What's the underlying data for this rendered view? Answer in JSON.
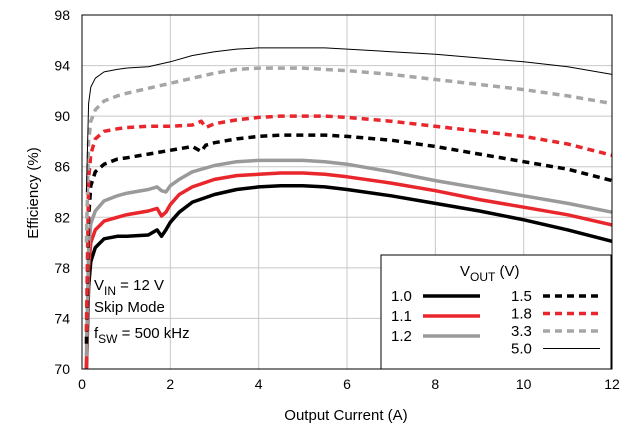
{
  "chart_data": {
    "type": "line",
    "xlabel": "Output Current (A)",
    "ylabel": "Efficiency (%)",
    "xlim": [
      0,
      12
    ],
    "ylim": [
      70,
      98
    ],
    "xticks": [
      "0",
      "2",
      "4",
      "6",
      "8",
      "10",
      "12"
    ],
    "yticks": [
      "70",
      "74",
      "78",
      "82",
      "86",
      "90",
      "94",
      "98"
    ],
    "grid": true,
    "legend": {
      "placement": "bottom-right",
      "title_main": "V",
      "title_sub": "OUT",
      "title_unit": " (V)"
    },
    "annotations": {
      "vin_main": "V",
      "vin_sub": "IN",
      "vin_value": " = 12 V",
      "mode": "Skip Mode",
      "fsw_main": "f",
      "fsw_sub": "SW",
      "fsw_value": " = 500 kHz"
    },
    "series": [
      {
        "name": "1.0",
        "color": "#000000",
        "style": "solid-thick",
        "x": [
          0.1,
          0.15,
          0.2,
          0.3,
          0.5,
          0.8,
          1.0,
          1.5,
          1.7,
          1.8,
          1.9,
          2.0,
          2.2,
          2.5,
          3.0,
          3.5,
          4.0,
          4.5,
          5.0,
          5.5,
          6.0,
          7.0,
          8.0,
          9.0,
          10.0,
          11.0,
          12.0
        ],
        "y": [
          70.0,
          76.5,
          78.5,
          79.6,
          80.3,
          80.5,
          80.5,
          80.6,
          81.0,
          80.5,
          81.0,
          81.6,
          82.4,
          83.2,
          83.8,
          84.2,
          84.4,
          84.5,
          84.5,
          84.4,
          84.2,
          83.7,
          83.1,
          82.5,
          81.8,
          81.0,
          80.1
        ]
      },
      {
        "name": "1.1",
        "color": "#e8262b",
        "style": "solid-thick",
        "x": [
          0.1,
          0.15,
          0.2,
          0.3,
          0.5,
          0.8,
          1.0,
          1.5,
          1.7,
          1.8,
          1.9,
          2.0,
          2.2,
          2.5,
          3.0,
          3.5,
          4.0,
          4.5,
          5.0,
          5.5,
          6.0,
          7.0,
          8.0,
          9.0,
          10.0,
          11.0,
          12.0
        ],
        "y": [
          70.0,
          78.0,
          80.0,
          81.0,
          81.7,
          82.0,
          82.2,
          82.5,
          82.7,
          82.1,
          82.4,
          83.0,
          83.8,
          84.4,
          85.0,
          85.3,
          85.4,
          85.5,
          85.5,
          85.4,
          85.2,
          84.7,
          84.1,
          83.4,
          82.8,
          82.2,
          81.4
        ]
      },
      {
        "name": "1.2",
        "color": "#9a9a9a",
        "style": "solid-thick",
        "x": [
          0.1,
          0.15,
          0.2,
          0.3,
          0.5,
          0.8,
          1.0,
          1.5,
          1.7,
          1.8,
          1.9,
          2.0,
          2.2,
          2.5,
          3.0,
          3.5,
          4.0,
          4.5,
          5.0,
          5.5,
          6.0,
          7.0,
          8.0,
          9.0,
          10.0,
          11.0,
          12.0
        ],
        "y": [
          71.0,
          79.5,
          81.5,
          82.5,
          83.3,
          83.7,
          83.9,
          84.2,
          84.4,
          84.1,
          84.0,
          84.5,
          85.0,
          85.6,
          86.1,
          86.4,
          86.5,
          86.5,
          86.5,
          86.4,
          86.2,
          85.6,
          84.9,
          84.3,
          83.7,
          83.1,
          82.4
        ]
      },
      {
        "name": "1.5",
        "color": "#000000",
        "style": "dashed-thick",
        "x": [
          0.1,
          0.15,
          0.2,
          0.3,
          0.5,
          0.8,
          1.0,
          1.5,
          2.0,
          2.5,
          2.7,
          2.8,
          3.0,
          3.5,
          4.0,
          4.5,
          5.0,
          5.5,
          6.0,
          7.0,
          8.0,
          9.0,
          10.0,
          11.0,
          12.0
        ],
        "y": [
          72.0,
          82.0,
          84.5,
          85.6,
          86.2,
          86.6,
          86.7,
          87.0,
          87.3,
          87.6,
          87.2,
          87.7,
          87.9,
          88.2,
          88.4,
          88.5,
          88.5,
          88.5,
          88.4,
          88.1,
          87.6,
          87.0,
          86.4,
          85.8,
          84.9
        ]
      },
      {
        "name": "1.8",
        "color": "#e8262b",
        "style": "dashed-thick",
        "x": [
          0.1,
          0.15,
          0.2,
          0.3,
          0.5,
          0.8,
          1.0,
          1.5,
          2.0,
          2.5,
          2.7,
          2.8,
          3.0,
          3.5,
          4.0,
          4.5,
          5.0,
          5.5,
          6.0,
          7.0,
          8.0,
          9.0,
          10.0,
          11.0,
          12.0
        ],
        "y": [
          73.0,
          85.0,
          87.0,
          88.2,
          88.8,
          89.0,
          89.1,
          89.2,
          89.2,
          89.3,
          89.6,
          89.1,
          89.4,
          89.7,
          89.9,
          90.0,
          90.0,
          90.0,
          89.9,
          89.6,
          89.2,
          88.8,
          88.4,
          87.8,
          86.9
        ]
      },
      {
        "name": "3.3",
        "color": "#a6a6a6",
        "style": "dashed-thick",
        "x": [
          0.1,
          0.15,
          0.2,
          0.3,
          0.5,
          0.8,
          1.0,
          1.5,
          2.0,
          2.5,
          3.0,
          3.5,
          4.0,
          4.5,
          5.0,
          5.5,
          6.0,
          7.0,
          8.0,
          9.0,
          10.0,
          11.0,
          12.0
        ],
        "y": [
          80.0,
          88.0,
          89.6,
          90.5,
          91.2,
          91.6,
          91.8,
          92.2,
          92.6,
          93.0,
          93.4,
          93.7,
          93.8,
          93.8,
          93.8,
          93.7,
          93.6,
          93.3,
          92.9,
          92.5,
          92.1,
          91.6,
          91.0
        ]
      },
      {
        "name": "5.0",
        "color": "#000000",
        "style": "solid-thin",
        "x": [
          0.1,
          0.15,
          0.2,
          0.3,
          0.5,
          0.8,
          1.0,
          1.5,
          2.0,
          2.5,
          3.0,
          3.5,
          4.0,
          4.5,
          5.0,
          5.5,
          6.0,
          7.0,
          8.0,
          9.0,
          10.0,
          11.0,
          12.0
        ],
        "y": [
          84.0,
          91.0,
          92.3,
          93.0,
          93.5,
          93.7,
          93.8,
          93.9,
          94.3,
          94.8,
          95.1,
          95.3,
          95.4,
          95.4,
          95.4,
          95.4,
          95.3,
          95.1,
          94.9,
          94.6,
          94.3,
          93.9,
          93.3
        ]
      }
    ]
  }
}
